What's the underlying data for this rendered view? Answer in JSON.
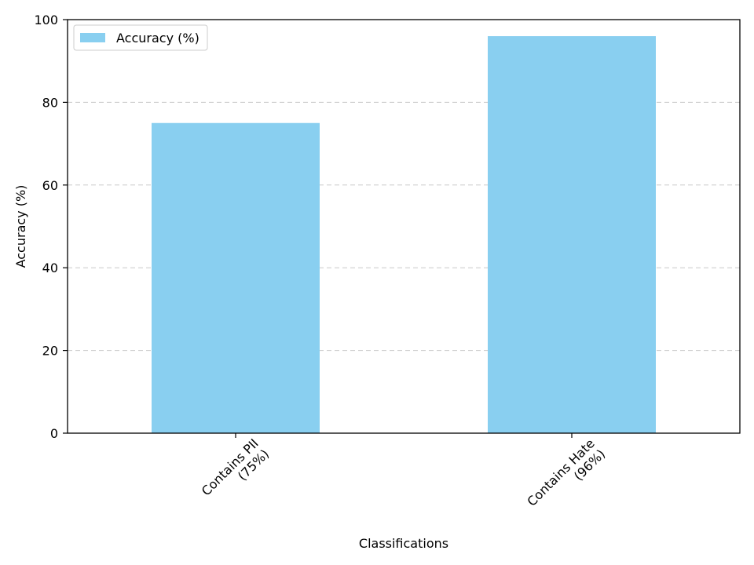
{
  "chart_data": {
    "type": "bar",
    "categories": [
      "Contains PII\n(75%)",
      "Contains Hate\n(96%)"
    ],
    "series": [
      {
        "name": "Accuracy (%)",
        "values": [
          75,
          96
        ],
        "color": "#89cff0"
      }
    ],
    "xlabel": "Classifications",
    "ylabel": "Accuracy (%)",
    "ylim": [
      0,
      100
    ],
    "yticks": [
      0,
      20,
      40,
      60,
      80,
      100
    ],
    "grid": {
      "y": true,
      "style": "dashed"
    },
    "legend": {
      "placement": "top-left",
      "entries": [
        "Accuracy (%)"
      ]
    },
    "xtick_rotation_deg": 45
  }
}
